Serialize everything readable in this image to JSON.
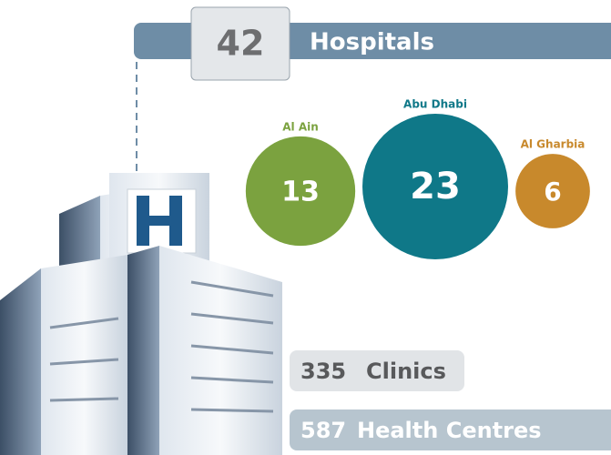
{
  "hospitals": {
    "count": 42,
    "label": "Hospitals"
  },
  "regions": [
    {
      "name": "Al Ain",
      "count": 13,
      "color": "#7ba23f"
    },
    {
      "name": "Abu Dhabi",
      "count": 23,
      "color": "#0f7888"
    },
    {
      "name": "Al Gharbia",
      "count": 6,
      "color": "#c8892c"
    }
  ],
  "clinics": {
    "count": 335,
    "label": "Clinics"
  },
  "health_centres": {
    "count": 587,
    "label": "Health Centres"
  }
}
